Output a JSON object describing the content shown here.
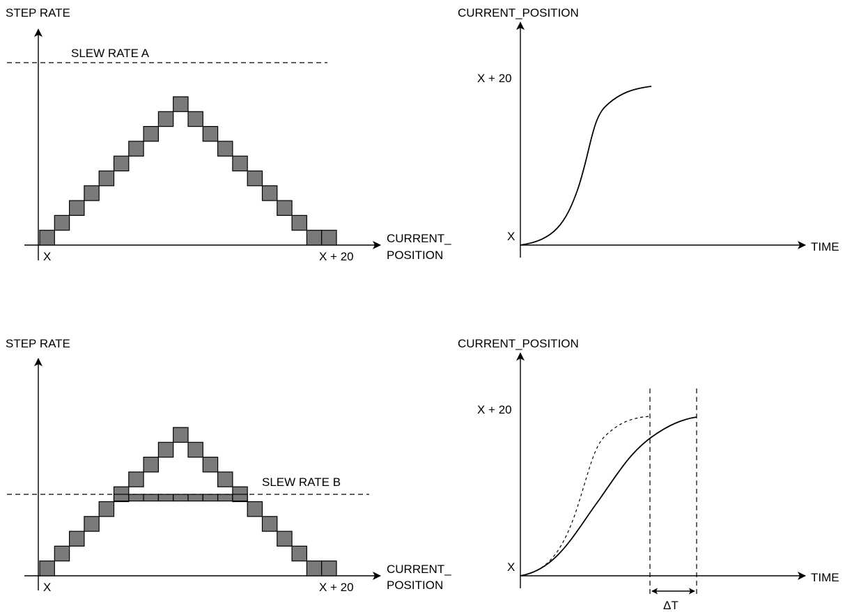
{
  "panels": {
    "top_left": {
      "y_title": "STEP RATE",
      "x_title_line1": "CURRENT_",
      "x_title_line2": "POSITION",
      "x_start": "X",
      "x_end": "X + 20",
      "slew_label": "SLEW RATE A",
      "step_heights": [
        1,
        2,
        3,
        4,
        5,
        6,
        7,
        8,
        9,
        10,
        9,
        8,
        7,
        6,
        5,
        4,
        3,
        2,
        1,
        1
      ],
      "slew_level": 11.5
    },
    "top_right": {
      "y_title": "CURRENT_POSITION",
      "y_top": "X + 20",
      "y_origin": "X",
      "x_title": "TIME"
    },
    "bottom_left": {
      "y_title": "STEP RATE",
      "x_title_line1": "CURRENT_",
      "x_title_line2": "POSITION",
      "x_start": "X",
      "x_end": "X + 20",
      "slew_label": "SLEW RATE B",
      "step_heights": [
        1,
        2,
        3,
        4,
        5,
        6,
        7,
        8,
        9,
        10,
        9,
        8,
        7,
        6,
        5,
        4,
        3,
        2,
        1,
        1
      ],
      "slew_level": 5.5
    },
    "bottom_right": {
      "y_title": "CURRENT_POSITION",
      "y_top": "X + 20",
      "y_origin": "X",
      "x_title": "TIME",
      "delta_label": "ΔT"
    }
  }
}
